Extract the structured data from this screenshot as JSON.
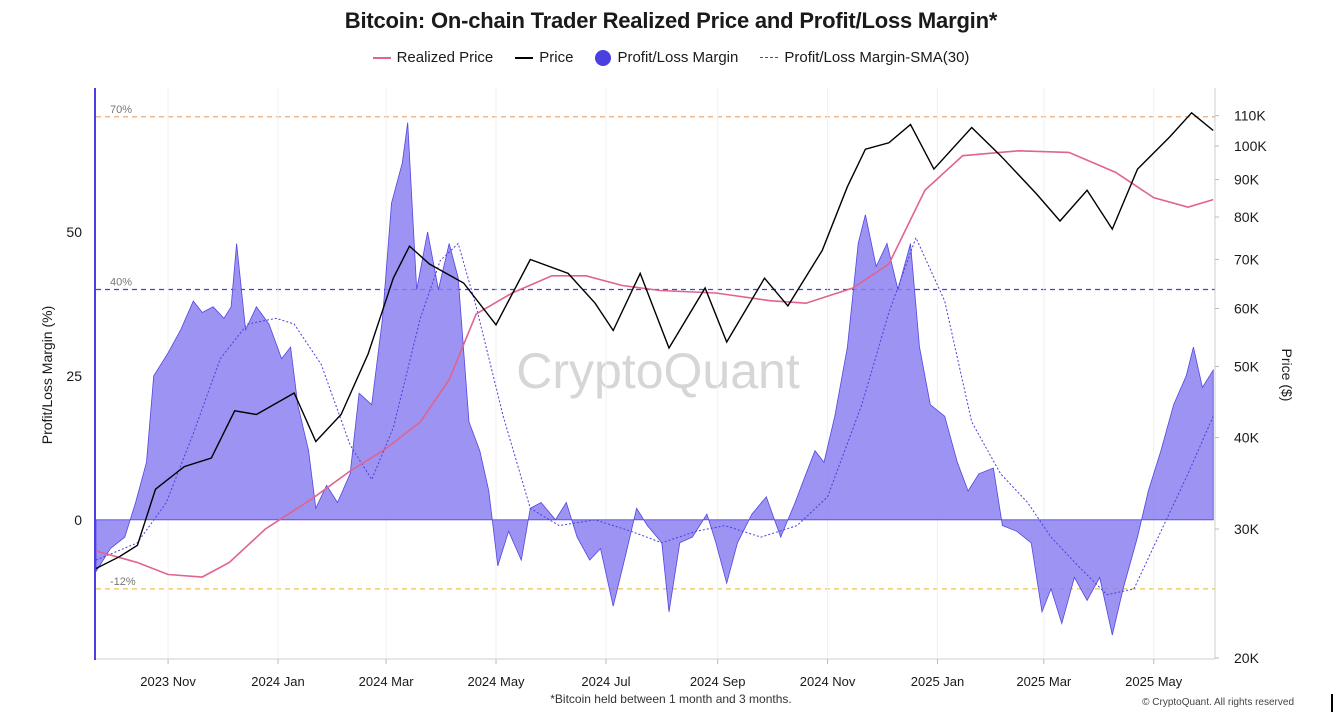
{
  "chart_data": {
    "type": "area",
    "title": "Bitcoin: On-chain Trader Realized Price and Profit/Loss Margin*",
    "footnote": "*Bitcoin held between 1 month and 3 months.",
    "watermark": "CryptoQuant",
    "copyright": "© CryptoQuant. All rights reserved",
    "ylabel_left": "Profit/Loss Margin (%)",
    "ylabel_right": "Price ($)",
    "left_axis": {
      "ticks": [
        0,
        25,
        50
      ],
      "range": [
        -24,
        75
      ]
    },
    "right_axis": {
      "scale": "log",
      "range": [
        20000,
        120000
      ],
      "ticks": [
        20000,
        30000,
        40000,
        50000,
        60000,
        70000,
        80000,
        90000,
        100000,
        110000
      ],
      "tick_labels": [
        "20K",
        "30K",
        "40K",
        "50K",
        "60K",
        "70K",
        "80K",
        "90K",
        "100K",
        "110K"
      ]
    },
    "x_axis": {
      "range": [
        "2023-09-22",
        "2025-06-04"
      ],
      "tick_dates": [
        "2023-11-01",
        "2024-01-01",
        "2024-03-01",
        "2024-05-01",
        "2024-07-01",
        "2024-09-01",
        "2024-11-01",
        "2025-01-01",
        "2025-03-01",
        "2025-05-01"
      ],
      "tick_labels": [
        "2023 Nov",
        "2024 Jan",
        "2024 Mar",
        "2024 May",
        "2024 Jul",
        "2024 Sep",
        "2024 Nov",
        "2025 Jan",
        "2025 Mar",
        "2025 May"
      ]
    },
    "reference_lines": [
      {
        "value": 70,
        "label": "70%",
        "color": "#e8a06a"
      },
      {
        "value": 40,
        "label": "40%",
        "color": "#4a3fe0"
      },
      {
        "value": -12,
        "label": "-12%",
        "color": "#f2c150"
      }
    ],
    "legend": [
      {
        "name": "Realized Price",
        "type": "line",
        "color": "#e0648c"
      },
      {
        "name": "Price",
        "type": "line",
        "color": "#000000"
      },
      {
        "name": "Profit/Loss Margin",
        "type": "dot",
        "color": "#4a3fe0"
      },
      {
        "name": "Profit/Loss Margin-SMA(30)",
        "type": "dashed",
        "color": "#4a3fe0"
      }
    ],
    "series": [
      {
        "name": "Profit/Loss Margin",
        "axis": "left",
        "color": "#8b80f0",
        "points": [
          [
            "2023-09-22",
            -9
          ],
          [
            "2023-09-30",
            -5
          ],
          [
            "2023-10-08",
            -3
          ],
          [
            "2023-10-14",
            3
          ],
          [
            "2023-10-20",
            10
          ],
          [
            "2023-10-24",
            25
          ],
          [
            "2023-11-01",
            29
          ],
          [
            "2023-11-08",
            33
          ],
          [
            "2023-11-15",
            38
          ],
          [
            "2023-11-20",
            36
          ],
          [
            "2023-11-26",
            37
          ],
          [
            "2023-12-02",
            35
          ],
          [
            "2023-12-06",
            37
          ],
          [
            "2023-12-09",
            48
          ],
          [
            "2023-12-14",
            33
          ],
          [
            "2023-12-20",
            37
          ],
          [
            "2023-12-27",
            34
          ],
          [
            "2024-01-03",
            28
          ],
          [
            "2024-01-08",
            30
          ],
          [
            "2024-01-12",
            20
          ],
          [
            "2024-01-18",
            12
          ],
          [
            "2024-01-22",
            2
          ],
          [
            "2024-01-28",
            6
          ],
          [
            "2024-02-03",
            3
          ],
          [
            "2024-02-10",
            8
          ],
          [
            "2024-02-15",
            22
          ],
          [
            "2024-02-22",
            20
          ],
          [
            "2024-02-28",
            35
          ],
          [
            "2024-03-04",
            55
          ],
          [
            "2024-03-10",
            62
          ],
          [
            "2024-03-13",
            69
          ],
          [
            "2024-03-18",
            40
          ],
          [
            "2024-03-24",
            50
          ],
          [
            "2024-03-30",
            40
          ],
          [
            "2024-04-05",
            48
          ],
          [
            "2024-04-10",
            42
          ],
          [
            "2024-04-16",
            17
          ],
          [
            "2024-04-22",
            12
          ],
          [
            "2024-04-27",
            5
          ],
          [
            "2024-05-02",
            -8
          ],
          [
            "2024-05-08",
            -2
          ],
          [
            "2024-05-15",
            -7
          ],
          [
            "2024-05-20",
            2
          ],
          [
            "2024-05-26",
            3
          ],
          [
            "2024-06-03",
            0
          ],
          [
            "2024-06-09",
            3
          ],
          [
            "2024-06-15",
            -3
          ],
          [
            "2024-06-22",
            -7
          ],
          [
            "2024-06-28",
            -5
          ],
          [
            "2024-07-05",
            -15
          ],
          [
            "2024-07-12",
            -6
          ],
          [
            "2024-07-18",
            2
          ],
          [
            "2024-07-24",
            -1
          ],
          [
            "2024-08-01",
            -4
          ],
          [
            "2024-08-05",
            -16
          ],
          [
            "2024-08-11",
            -4
          ],
          [
            "2024-08-18",
            -3
          ],
          [
            "2024-08-26",
            1
          ],
          [
            "2024-08-31",
            -4
          ],
          [
            "2024-09-06",
            -11
          ],
          [
            "2024-09-12",
            -4
          ],
          [
            "2024-09-20",
            1
          ],
          [
            "2024-09-28",
            4
          ],
          [
            "2024-10-06",
            -3
          ],
          [
            "2024-10-14",
            3
          ],
          [
            "2024-10-20",
            8
          ],
          [
            "2024-10-25",
            12
          ],
          [
            "2024-10-30",
            10
          ],
          [
            "2024-11-05",
            18
          ],
          [
            "2024-11-12",
            30
          ],
          [
            "2024-11-18",
            48
          ],
          [
            "2024-11-22",
            53
          ],
          [
            "2024-11-28",
            44
          ],
          [
            "2024-12-04",
            48
          ],
          [
            "2024-12-10",
            40
          ],
          [
            "2024-12-17",
            48
          ],
          [
            "2024-12-22",
            30
          ],
          [
            "2024-12-28",
            20
          ],
          [
            "2025-01-05",
            18
          ],
          [
            "2025-01-12",
            10
          ],
          [
            "2025-01-18",
            5
          ],
          [
            "2025-01-24",
            8
          ],
          [
            "2025-02-01",
            9
          ],
          [
            "2025-02-06",
            -1
          ],
          [
            "2025-02-14",
            -2
          ],
          [
            "2025-02-22",
            -4
          ],
          [
            "2025-02-28",
            -16
          ],
          [
            "2025-03-05",
            -12
          ],
          [
            "2025-03-11",
            -18
          ],
          [
            "2025-03-18",
            -10
          ],
          [
            "2025-03-25",
            -14
          ],
          [
            "2025-04-01",
            -10
          ],
          [
            "2025-04-08",
            -20
          ],
          [
            "2025-04-14",
            -12
          ],
          [
            "2025-04-22",
            -3
          ],
          [
            "2025-04-28",
            5
          ],
          [
            "2025-05-05",
            12
          ],
          [
            "2025-05-12",
            20
          ],
          [
            "2025-05-19",
            25
          ],
          [
            "2025-05-23",
            30
          ],
          [
            "2025-05-28",
            23
          ],
          [
            "2025-06-03",
            26
          ]
        ]
      },
      {
        "name": "Profit/Loss Margin-SMA(30)",
        "axis": "left",
        "color": "#4a3fe0",
        "points": [
          [
            "2023-09-22",
            -7
          ],
          [
            "2023-10-15",
            -4
          ],
          [
            "2023-10-31",
            3
          ],
          [
            "2023-11-15",
            15
          ],
          [
            "2023-11-30",
            28
          ],
          [
            "2023-12-15",
            34
          ],
          [
            "2023-12-31",
            35
          ],
          [
            "2024-01-10",
            34
          ],
          [
            "2024-01-25",
            27
          ],
          [
            "2024-02-10",
            13
          ],
          [
            "2024-02-22",
            7
          ],
          [
            "2024-03-05",
            16
          ],
          [
            "2024-03-20",
            35
          ],
          [
            "2024-03-31",
            45
          ],
          [
            "2024-04-10",
            48
          ],
          [
            "2024-04-20",
            37
          ],
          [
            "2024-05-05",
            18
          ],
          [
            "2024-05-20",
            2
          ],
          [
            "2024-06-05",
            -1
          ],
          [
            "2024-06-25",
            0
          ],
          [
            "2024-07-15",
            -2
          ],
          [
            "2024-08-01",
            -4
          ],
          [
            "2024-08-20",
            -2
          ],
          [
            "2024-09-05",
            -1
          ],
          [
            "2024-09-25",
            -3
          ],
          [
            "2024-10-15",
            -1
          ],
          [
            "2024-11-01",
            4
          ],
          [
            "2024-11-20",
            20
          ],
          [
            "2024-12-05",
            36
          ],
          [
            "2024-12-20",
            49
          ],
          [
            "2025-01-05",
            38
          ],
          [
            "2025-01-20",
            17
          ],
          [
            "2025-02-05",
            8
          ],
          [
            "2025-02-20",
            3
          ],
          [
            "2025-03-05",
            -3
          ],
          [
            "2025-03-20",
            -8
          ],
          [
            "2025-04-05",
            -13
          ],
          [
            "2025-04-20",
            -12
          ],
          [
            "2025-05-05",
            -2
          ],
          [
            "2025-05-20",
            8
          ],
          [
            "2025-06-03",
            18
          ]
        ]
      },
      {
        "name": "Realized Price",
        "axis": "right",
        "color": "#e0648c",
        "points": [
          [
            "2023-09-22",
            28000
          ],
          [
            "2023-10-15",
            27000
          ],
          [
            "2023-11-01",
            26000
          ],
          [
            "2023-11-20",
            25800
          ],
          [
            "2023-12-05",
            27000
          ],
          [
            "2023-12-25",
            30000
          ],
          [
            "2024-01-20",
            33000
          ],
          [
            "2024-02-10",
            36000
          ],
          [
            "2024-02-29",
            38500
          ],
          [
            "2024-03-20",
            42000
          ],
          [
            "2024-04-05",
            48000
          ],
          [
            "2024-04-20",
            59000
          ],
          [
            "2024-05-10",
            63000
          ],
          [
            "2024-06-01",
            66500
          ],
          [
            "2024-06-20",
            66500
          ],
          [
            "2024-07-10",
            64500
          ],
          [
            "2024-07-31",
            63500
          ],
          [
            "2024-08-31",
            63000
          ],
          [
            "2024-09-30",
            61500
          ],
          [
            "2024-10-20",
            61000
          ],
          [
            "2024-11-15",
            64000
          ],
          [
            "2024-12-05",
            69000
          ],
          [
            "2024-12-25",
            87000
          ],
          [
            "2025-01-15",
            97000
          ],
          [
            "2025-02-15",
            98500
          ],
          [
            "2025-03-15",
            98000
          ],
          [
            "2025-04-10",
            92000
          ],
          [
            "2025-05-01",
            85000
          ],
          [
            "2025-05-20",
            82500
          ],
          [
            "2025-06-03",
            84500
          ]
        ]
      },
      {
        "name": "Price",
        "axis": "right",
        "color": "#000000",
        "points": [
          [
            "2023-09-22",
            26500
          ],
          [
            "2023-10-05",
            27500
          ],
          [
            "2023-10-15",
            28500
          ],
          [
            "2023-10-25",
            34000
          ],
          [
            "2023-11-10",
            36500
          ],
          [
            "2023-11-25",
            37500
          ],
          [
            "2023-12-08",
            43500
          ],
          [
            "2023-12-20",
            43000
          ],
          [
            "2024-01-10",
            46000
          ],
          [
            "2024-01-22",
            39500
          ],
          [
            "2024-02-05",
            43000
          ],
          [
            "2024-02-20",
            52000
          ],
          [
            "2024-03-05",
            66000
          ],
          [
            "2024-03-14",
            73000
          ],
          [
            "2024-03-25",
            69000
          ],
          [
            "2024-04-13",
            65000
          ],
          [
            "2024-05-01",
            57000
          ],
          [
            "2024-05-20",
            70000
          ],
          [
            "2024-06-10",
            67000
          ],
          [
            "2024-06-25",
            61000
          ],
          [
            "2024-07-05",
            56000
          ],
          [
            "2024-07-20",
            67000
          ],
          [
            "2024-08-05",
            53000
          ],
          [
            "2024-08-25",
            64000
          ],
          [
            "2024-09-06",
            54000
          ],
          [
            "2024-09-27",
            66000
          ],
          [
            "2024-10-10",
            60500
          ],
          [
            "2024-10-29",
            72000
          ],
          [
            "2024-11-12",
            88000
          ],
          [
            "2024-11-22",
            99000
          ],
          [
            "2024-12-05",
            101000
          ],
          [
            "2024-12-17",
            107000
          ],
          [
            "2024-12-30",
            93000
          ],
          [
            "2025-01-20",
            106000
          ],
          [
            "2025-02-05",
            97000
          ],
          [
            "2025-02-25",
            86000
          ],
          [
            "2025-03-10",
            79000
          ],
          [
            "2025-03-25",
            87000
          ],
          [
            "2025-04-08",
            77000
          ],
          [
            "2025-04-22",
            93000
          ],
          [
            "2025-05-10",
            103000
          ],
          [
            "2025-05-22",
            111000
          ],
          [
            "2025-06-03",
            105000
          ]
        ]
      }
    ]
  }
}
